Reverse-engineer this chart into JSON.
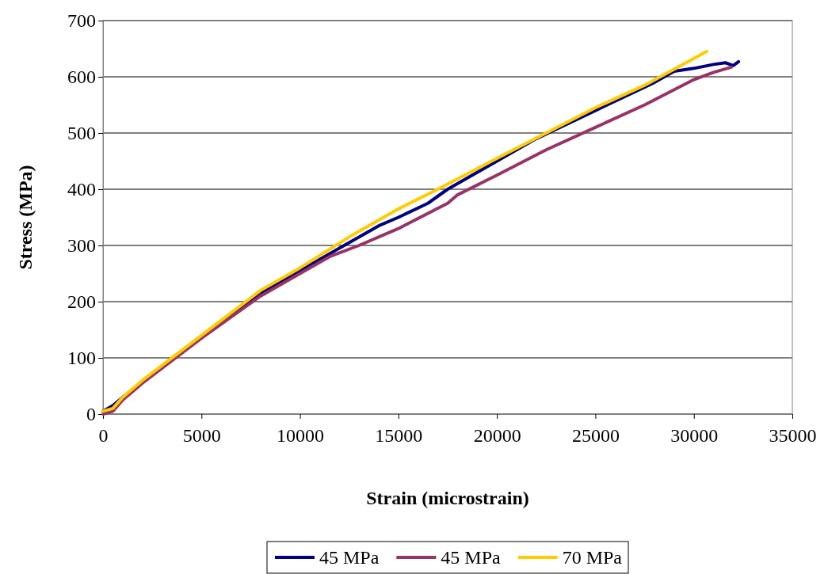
{
  "chart_data": {
    "type": "line",
    "xlabel": "Strain (microstrain)",
    "ylabel": "Stress (MPa)",
    "xlim": [
      0,
      35000
    ],
    "xticks": [
      0,
      5000,
      10000,
      15000,
      20000,
      25000,
      30000,
      35000
    ],
    "ylim": [
      0,
      700
    ],
    "yticks": [
      0,
      100,
      200,
      300,
      400,
      500,
      600,
      700
    ],
    "grid": "y",
    "legend": "bottom",
    "marker": "none",
    "line_style": "solid",
    "series": [
      {
        "name": "45 MPa",
        "color": "#000080",
        "x": [
          0,
          500,
          1000,
          8000,
          10000,
          12000,
          14000,
          15000,
          16500,
          17500,
          20000,
          22000,
          25000,
          28000,
          29000,
          30000,
          31000,
          31600,
          32000,
          32270
        ],
        "values": [
          5,
          15,
          30,
          215,
          255,
          295,
          335,
          350,
          375,
          400,
          450,
          490,
          540,
          590,
          610,
          615,
          622,
          625,
          620,
          627
        ]
      },
      {
        "name": "45 MPa",
        "color": "#993366",
        "x": [
          0,
          500,
          1000,
          2000,
          5000,
          8000,
          10000,
          11500,
          13000,
          15000,
          17500,
          18000,
          20000,
          22500,
          25000,
          27500,
          30000,
          31000,
          31900
        ],
        "values": [
          0,
          5,
          25,
          55,
          135,
          210,
          250,
          280,
          300,
          330,
          375,
          390,
          425,
          470,
          510,
          550,
          595,
          608,
          617
        ]
      },
      {
        "name": "70 MPa",
        "color": "#ffcc00",
        "x": [
          0,
          500,
          1000,
          2000,
          5000,
          8000,
          10000,
          12500,
          14000,
          15000,
          17000,
          20000,
          22500,
          25000,
          27500,
          30650
        ],
        "values": [
          5,
          10,
          30,
          60,
          140,
          220,
          260,
          315,
          345,
          365,
          400,
          455,
          500,
          545,
          585,
          645
        ]
      }
    ]
  }
}
